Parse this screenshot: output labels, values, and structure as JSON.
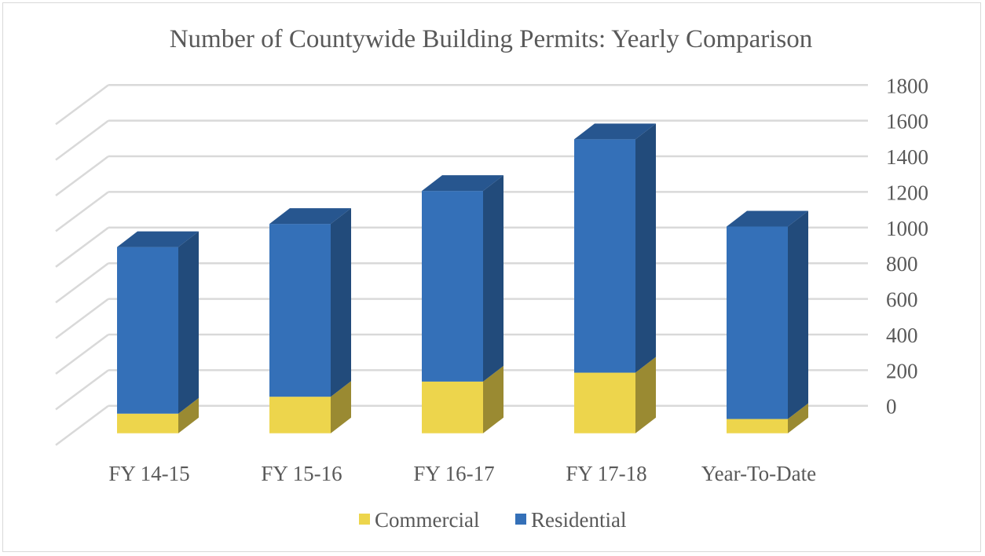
{
  "chart_data": {
    "type": "bar",
    "stacked": true,
    "three_d": true,
    "title": "Number of Countywide Building Permits: Yearly Comparison",
    "categories": [
      "FY 14-15",
      "FY 15-16",
      "FY 16-17",
      "FY 17-18",
      "Year-To-Date"
    ],
    "series": [
      {
        "name": "Commercial",
        "values": [
          110,
          205,
          290,
          340,
          80
        ],
        "color": "#EDD54C",
        "side_color": "#9A8A32",
        "top_color": "#D6BE3E"
      },
      {
        "name": "Residential",
        "values": [
          935,
          970,
          1070,
          1310,
          1080
        ],
        "color": "#3470B8",
        "side_color": "#224B7B",
        "top_color": "#27568F"
      }
    ],
    "ylim": [
      0,
      1800
    ],
    "yticks": [
      0,
      200,
      400,
      600,
      800,
      1000,
      1200,
      1400,
      1600,
      1800
    ],
    "y_axis_side": "right",
    "grid": true,
    "legend": "bottom",
    "xlabel": "",
    "ylabel": ""
  }
}
